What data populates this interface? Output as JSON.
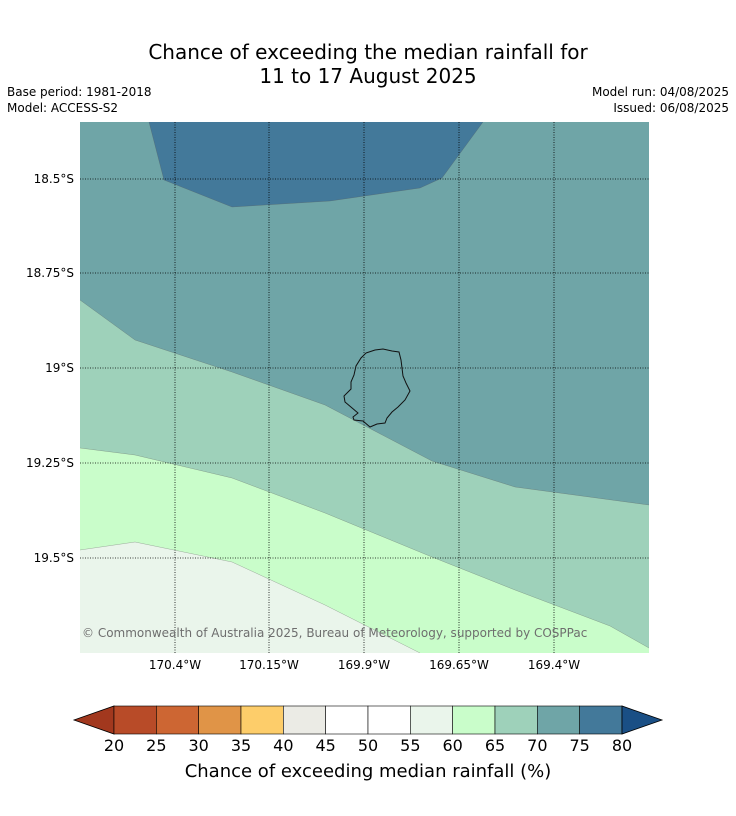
{
  "title": {
    "line1": "Chance of exceeding the median rainfall for",
    "line2": "11 to 17 August 2025"
  },
  "meta": {
    "base_period": "Base period: 1981-2018",
    "model": "Model: ACCESS-S2",
    "model_run": "Model run: 04/08/2025",
    "issued": "Issued: 06/08/2025"
  },
  "map": {
    "lat_labels": [
      "18.5°S",
      "18.75°S",
      "19°S",
      "19.25°S",
      "19.5°S"
    ],
    "lon_labels": [
      "170.4°W",
      "170.15°W",
      "169.9°W",
      "169.65°W",
      "169.4°W"
    ],
    "copyright": "© Commonwealth of Australia 2025, Bureau of Meteorology, supported by COSPPac",
    "zone_colors": {
      "75-80": "#43799a",
      "70-75": "#6fa5a7",
      "65-70": "#9ed1ba",
      "60-65": "#c9fdca",
      "55-60": "#eaf5eb"
    }
  },
  "colorbar": {
    "title": "Chance of exceeding median rainfall (%)",
    "ticks": [
      "20",
      "25",
      "30",
      "35",
      "40",
      "45",
      "50",
      "55",
      "60",
      "65",
      "70",
      "75",
      "80"
    ],
    "colors": [
      "#a2381e",
      "#b84b28",
      "#cd6633",
      "#e09447",
      "#fdcd6a",
      "#ebebe5",
      "#ffffff",
      "#ffffff",
      "#eaf5eb",
      "#c9fdca",
      "#9ed1ba",
      "#6fa5a7",
      "#43799a",
      "#1a4f85"
    ]
  }
}
